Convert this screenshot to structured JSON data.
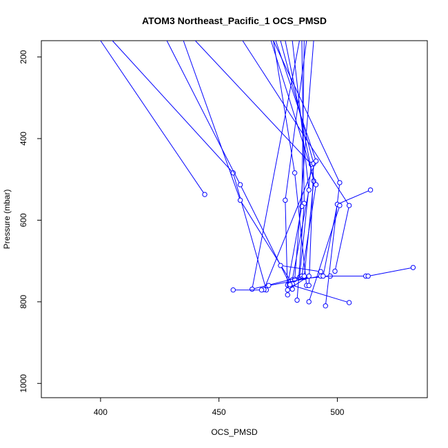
{
  "chart_data": {
    "type": "line",
    "title": "ATOM3 Northeast_Pacific_1 OCS_PMSD",
    "xlabel": "OCS_PMSD",
    "ylabel": "Pressure (mbar)",
    "xlim": [
      375,
      538
    ],
    "ylim": [
      1035,
      160
    ],
    "y_inverted": true,
    "xticks": [
      400,
      450,
      500
    ],
    "yticks": [
      200,
      400,
      600,
      800,
      1000
    ],
    "grid": false,
    "legend": "none",
    "colors": {
      "series": "#0000ff",
      "axes": "#000000",
      "background": "#ffffff"
    },
    "series": [
      {
        "points": [
          [
            400,
            160
          ],
          [
            444,
            537
          ]
        ]
      },
      {
        "points": [
          [
            405,
            160
          ],
          [
            456,
            484
          ],
          [
            470,
            771
          ]
        ]
      },
      {
        "points": [
          [
            428,
            160
          ],
          [
            459,
            513
          ],
          [
            481,
            769
          ]
        ]
      },
      {
        "points": [
          [
            435,
            160
          ],
          [
            459,
            551
          ],
          [
            481,
            756
          ]
        ]
      },
      {
        "points": [
          [
            440,
            160
          ],
          [
            489,
            463
          ],
          [
            484,
            740
          ]
        ]
      },
      {
        "points": [
          [
            473,
            160
          ],
          [
            482,
            484
          ],
          [
            487,
            760
          ]
        ]
      },
      {
        "points": [
          [
            478,
            160
          ],
          [
            490,
            504
          ],
          [
            486,
            740
          ]
        ]
      },
      {
        "points": [
          [
            481,
            160
          ],
          [
            488,
            526
          ],
          [
            481,
            746
          ]
        ]
      },
      {
        "points": [
          [
            472,
            160
          ],
          [
            491,
            513
          ],
          [
            485,
            737
          ]
        ]
      },
      {
        "points": [
          [
            473,
            160
          ],
          [
            501,
            508
          ],
          [
            495,
            810
          ]
        ]
      },
      {
        "points": [
          [
            476,
            160
          ],
          [
            490,
            461
          ],
          [
            488,
            760
          ]
        ]
      },
      {
        "points": [
          [
            474,
            160
          ],
          [
            491,
            455
          ],
          [
            469,
            770
          ]
        ]
      },
      {
        "points": [
          [
            485,
            160
          ],
          [
            486,
            559
          ],
          [
            483,
            796
          ]
        ]
      },
      {
        "points": [
          [
            486,
            160
          ],
          [
            485,
            566
          ],
          [
            479,
            759
          ]
        ]
      },
      {
        "points": [
          [
            487,
            160
          ],
          [
            478,
            551
          ],
          [
            479,
            783
          ]
        ]
      },
      {
        "points": [
          [
            490,
            160
          ],
          [
            482,
            745
          ],
          [
            497,
            737
          ]
        ]
      },
      {
        "points": [
          [
            484,
            160
          ],
          [
            464,
            769
          ],
          [
            486,
            737
          ]
        ]
      },
      {
        "points": [
          [
            460,
            160
          ],
          [
            505,
            564
          ],
          [
            499,
            725
          ]
        ]
      },
      {
        "points": [
          [
            456,
            771
          ],
          [
            468,
            771
          ]
        ]
      },
      {
        "points": [
          [
            471,
            760
          ],
          [
            493,
            737
          ],
          [
            512,
            737
          ]
        ]
      },
      {
        "points": [
          [
            476,
            711
          ],
          [
            493,
            726
          ]
        ]
      },
      {
        "points": [
          [
            505,
            802
          ],
          [
            480,
            758
          ]
        ]
      },
      {
        "points": [
          [
            532,
            716
          ],
          [
            513,
            737
          ]
        ]
      },
      {
        "points": [
          [
            514,
            526
          ],
          [
            500,
            561
          ],
          [
            494,
            737
          ]
        ]
      },
      {
        "points": [
          [
            501,
            564
          ],
          [
            488,
            800
          ]
        ]
      },
      {
        "points": [
          [
            479,
            771
          ],
          [
            488,
            737
          ]
        ]
      }
    ]
  }
}
